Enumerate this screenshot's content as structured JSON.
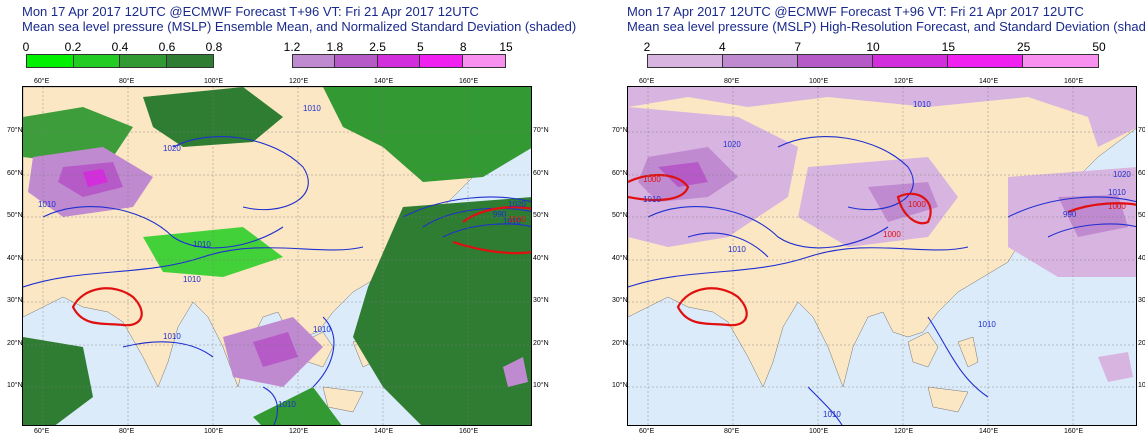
{
  "panels": [
    {
      "title_line1": "Mon 17 Apr 2017 12UTC @ECMWF Forecast T+96 VT: Fri 21 Apr 2017 12UTC",
      "title_line2": "Mean sea level pressure (MSLP) Ensemble Mean, and Normalized Standard Deviation (shaded)",
      "legends": [
        {
          "labels": [
            "0",
            "0.2",
            "0.4",
            "0.6",
            "0.8"
          ],
          "colors": [
            "#00f000",
            "#22cc22",
            "#339933",
            "#2e7d32"
          ]
        },
        {
          "labels": [
            "1.2",
            "1.8",
            "2.5",
            "5",
            "8",
            "15"
          ],
          "colors": [
            "#c08ad0",
            "#b65ac8",
            "#d22edc",
            "#f020f0",
            "#f890f0"
          ]
        }
      ],
      "lon_labels": [
        "60°E",
        "80°E",
        "100°E",
        "120°E",
        "140°E",
        "160°E"
      ],
      "lat_labels": [
        "70°N",
        "60°N",
        "50°N",
        "40°N",
        "30°N",
        "20°N",
        "10°N"
      ],
      "contour_labels": [
        "1010",
        "1020",
        "1010",
        "1010",
        "1010",
        "1020",
        "1010",
        "990",
        "1000",
        "1010",
        "1010",
        "1010"
      ]
    },
    {
      "title_line1": "Mon 17 Apr 2017 12UTC @ECMWF Forecast T+96 VT: Fri 21 Apr 2017 12UTC",
      "title_line2": "Mean sea level pressure (MSLP) High-Resolution Forecast, and Standard Deviation (shaded)",
      "legends": [
        {
          "labels": [
            "2",
            "4",
            "7",
            "10",
            "15",
            "25",
            "50"
          ],
          "colors": [
            "#d8b4e0",
            "#c08ad0",
            "#b65ac8",
            "#d22edc",
            "#f020f0",
            "#f890f0"
          ]
        }
      ],
      "lon_labels": [
        "60°E",
        "80°E",
        "100°E",
        "120°E",
        "140°E",
        "160°E"
      ],
      "lat_labels": [
        "70°N",
        "60°N",
        "50°N",
        "40°N",
        "30°N",
        "20°N",
        "10°N"
      ],
      "contour_labels": [
        "1010",
        "1020",
        "1000",
        "1010",
        "1000",
        "1000",
        "1010",
        "1020",
        "1010",
        "990",
        "1000",
        "1010",
        "1010"
      ]
    }
  ],
  "colors": {
    "title": "#1a2a8c",
    "land": "#fbe7c3",
    "sea": "#dcebfa",
    "isobar": "#1f2fd0",
    "isobar_1000": "#e01010",
    "purple_light": "#d8b4e0",
    "purple_mid": "#c08ad0",
    "purple_dark": "#b65ac8",
    "magenta": "#d22edc",
    "green_mid": "#339933",
    "green_dark": "#2e7d32"
  }
}
